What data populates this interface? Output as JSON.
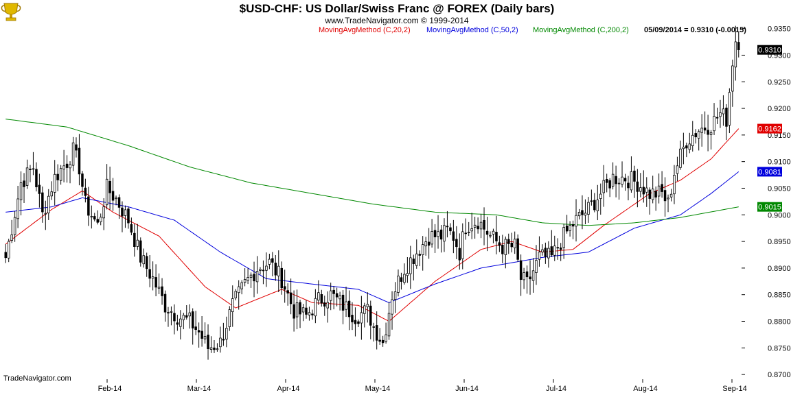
{
  "header": {
    "title": "$USD-CHF:  US Dollar/Swiss Franc @ FOREX  (Daily bars)",
    "credit": "www.TradeNavigator.com © 1999-2014",
    "legend": [
      {
        "label": "MovingAvgMethod (C,20,2)",
        "color": "#e00000"
      },
      {
        "label": "MovingAvgMethod (C,50,2)",
        "color": "#0000dd"
      },
      {
        "label": "MovingAvgMethod (C,200,2)",
        "color": "#008800"
      }
    ],
    "last_price": "05/09/2014 = 0.9310 (-0.0015)"
  },
  "footer": {
    "brand": "TradeNavigator.com"
  },
  "logo": {
    "name": "trophy-logo-icon",
    "color": "#e0b800"
  },
  "chart_data": {
    "type": "candlestick",
    "title": "$USD-CHF:  US Dollar/Swiss Franc @ FOREX  (Daily bars)",
    "ylim": [
      0.8695,
      0.9365
    ],
    "y_ticks": [
      "0.9350",
      "0.9300",
      "0.9250",
      "0.9200",
      "0.9150",
      "0.9100",
      "0.9050",
      "0.9000",
      "0.8950",
      "0.8900",
      "0.8850",
      "0.8800",
      "0.8750",
      "0.8700"
    ],
    "x_ticks": [
      "Feb-14",
      "Mar-14",
      "Apr-14",
      "May-14",
      "Jun-14",
      "Jul-14",
      "Aug-14",
      "Sep-14"
    ],
    "price_tags": [
      {
        "label": "0.9310",
        "value": 0.931,
        "color": "#000000"
      },
      {
        "label": "0.9162",
        "value": 0.9162,
        "color": "#e00000"
      },
      {
        "label": "0.9081",
        "value": 0.9081,
        "color": "#0000dd"
      },
      {
        "label": "0.9015",
        "value": 0.9015,
        "color": "#008800"
      }
    ],
    "close_anchors": [
      [
        0,
        0.892
      ],
      [
        5,
        0.906
      ],
      [
        9,
        0.909
      ],
      [
        12,
        0.9
      ],
      [
        16,
        0.907
      ],
      [
        20,
        0.91
      ],
      [
        22,
        0.912
      ],
      [
        24,
        0.909
      ],
      [
        26,
        0.902
      ],
      [
        30,
        0.898
      ],
      [
        33,
        0.905
      ],
      [
        36,
        0.903
      ],
      [
        40,
        0.899
      ],
      [
        44,
        0.892
      ],
      [
        48,
        0.888
      ],
      [
        52,
        0.883
      ],
      [
        56,
        0.881
      ],
      [
        60,
        0.88
      ],
      [
        63,
        0.878
      ],
      [
        66,
        0.875
      ],
      [
        70,
        0.876
      ],
      [
        74,
        0.883
      ],
      [
        78,
        0.887
      ],
      [
        82,
        0.89
      ],
      [
        86,
        0.891
      ],
      [
        90,
        0.888
      ],
      [
        94,
        0.882
      ],
      [
        98,
        0.881
      ],
      [
        102,
        0.884
      ],
      [
        106,
        0.885
      ],
      [
        110,
        0.883
      ],
      [
        114,
        0.881
      ],
      [
        118,
        0.882
      ],
      [
        120,
        0.879
      ],
      [
        123,
        0.876
      ],
      [
        126,
        0.885
      ],
      [
        130,
        0.89
      ],
      [
        134,
        0.893
      ],
      [
        138,
        0.896
      ],
      [
        142,
        0.896
      ],
      [
        144,
        0.897
      ],
      [
        146,
        0.896
      ],
      [
        148,
        0.893
      ],
      [
        150,
        0.898
      ],
      [
        154,
        0.899
      ],
      [
        158,
        0.896
      ],
      [
        162,
        0.894
      ],
      [
        166,
        0.894
      ],
      [
        168,
        0.888
      ],
      [
        170,
        0.887
      ],
      [
        174,
        0.892
      ],
      [
        178,
        0.892
      ],
      [
        182,
        0.896
      ],
      [
        186,
        0.899
      ],
      [
        190,
        0.901
      ],
      [
        194,
        0.904
      ],
      [
        198,
        0.907
      ],
      [
        202,
        0.907
      ],
      [
        206,
        0.906
      ],
      [
        210,
        0.904
      ],
      [
        214,
        0.904
      ],
      [
        216,
        0.902
      ],
      [
        218,
        0.908
      ],
      [
        222,
        0.914
      ],
      [
        226,
        0.916
      ],
      [
        230,
        0.917
      ],
      [
        233,
        0.919
      ],
      [
        235,
        0.918
      ],
      [
        237,
        0.928
      ],
      [
        238,
        0.9325
      ],
      [
        239,
        0.931
      ]
    ],
    "series": [
      {
        "name": "MovingAvgMethod (C,20,2)",
        "color": "#e00000",
        "points": [
          [
            0,
            0.8945
          ],
          [
            15,
            0.901
          ],
          [
            25,
            0.9045
          ],
          [
            35,
            0.9005
          ],
          [
            50,
            0.896
          ],
          [
            65,
            0.8865
          ],
          [
            75,
            0.8825
          ],
          [
            90,
            0.886
          ],
          [
            100,
            0.8835
          ],
          [
            115,
            0.883
          ],
          [
            125,
            0.88
          ],
          [
            140,
            0.8875
          ],
          [
            155,
            0.8935
          ],
          [
            165,
            0.895
          ],
          [
            175,
            0.893
          ],
          [
            185,
            0.8935
          ],
          [
            195,
            0.898
          ],
          [
            210,
            0.904
          ],
          [
            220,
            0.9065
          ],
          [
            230,
            0.9105
          ],
          [
            239,
            0.9162
          ]
        ]
      },
      {
        "name": "MovingAvgMethod (C,50,2)",
        "color": "#0000dd",
        "points": [
          [
            0,
            0.9005
          ],
          [
            15,
            0.9015
          ],
          [
            25,
            0.9032
          ],
          [
            40,
            0.9015
          ],
          [
            55,
            0.899
          ],
          [
            70,
            0.893
          ],
          [
            85,
            0.888
          ],
          [
            100,
            0.887
          ],
          [
            115,
            0.886
          ],
          [
            125,
            0.8835
          ],
          [
            140,
            0.887
          ],
          [
            155,
            0.89
          ],
          [
            175,
            0.892
          ],
          [
            190,
            0.893
          ],
          [
            205,
            0.8975
          ],
          [
            220,
            0.9
          ],
          [
            230,
            0.904
          ],
          [
            239,
            0.9081
          ]
        ]
      },
      {
        "name": "MovingAvgMethod (C,200,2)",
        "color": "#008800",
        "points": [
          [
            0,
            0.918
          ],
          [
            20,
            0.9165
          ],
          [
            40,
            0.913
          ],
          [
            60,
            0.909
          ],
          [
            80,
            0.906
          ],
          [
            100,
            0.904
          ],
          [
            120,
            0.902
          ],
          [
            140,
            0.9005
          ],
          [
            160,
            0.9
          ],
          [
            175,
            0.8985
          ],
          [
            190,
            0.898
          ],
          [
            205,
            0.8985
          ],
          [
            220,
            0.8995
          ],
          [
            239,
            0.9015
          ]
        ]
      }
    ],
    "grid": false,
    "legend_position": "top"
  }
}
